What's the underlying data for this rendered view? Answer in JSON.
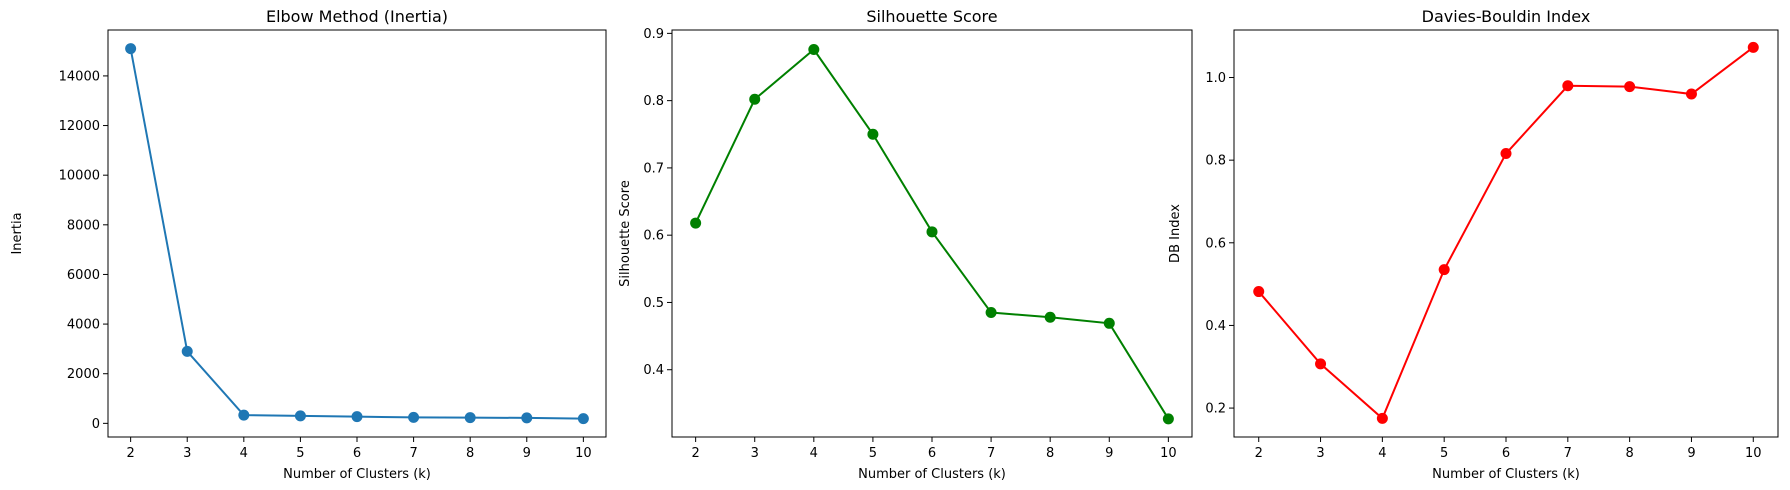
{
  "chart_data": [
    {
      "type": "line",
      "title": "Elbow Method (Inertia)",
      "xlabel": "Number of Clusters (k)",
      "ylabel": "Inertia",
      "x": [
        2,
        3,
        4,
        5,
        6,
        7,
        8,
        9,
        10
      ],
      "xlim": [
        1.6,
        10.4
      ],
      "ylim": [
        -550,
        15850
      ],
      "xticks": [
        "2",
        "3",
        "4",
        "5",
        "6",
        "7",
        "8",
        "9",
        "10"
      ],
      "yticks": [
        0,
        2000,
        4000,
        6000,
        8000,
        10000,
        12000,
        14000
      ],
      "ytick_labels": [
        "0",
        "2000",
        "4000",
        "6000",
        "8000",
        "10000",
        "12000",
        "14000"
      ],
      "grid": false,
      "series": [
        {
          "values": [
            15100,
            2900,
            330,
            300,
            270,
            240,
            230,
            220,
            190
          ],
          "color": "#1f77b4",
          "marker": "circle"
        }
      ]
    },
    {
      "type": "line",
      "title": "Silhouette Score",
      "xlabel": "Number of Clusters (k)",
      "ylabel": "Silhouette Score",
      "x": [
        2,
        3,
        4,
        5,
        6,
        7,
        8,
        9,
        10
      ],
      "xlim": [
        1.6,
        10.4
      ],
      "ylim": [
        0.3,
        0.905
      ],
      "xticks": [
        "2",
        "3",
        "4",
        "5",
        "6",
        "7",
        "8",
        "9",
        "10"
      ],
      "yticks": [
        0.4,
        0.5,
        0.6,
        0.7,
        0.8,
        0.9
      ],
      "ytick_labels": [
        "0.4",
        "0.5",
        "0.6",
        "0.7",
        "0.8",
        "0.9"
      ],
      "grid": false,
      "series": [
        {
          "values": [
            0.618,
            0.802,
            0.876,
            0.75,
            0.605,
            0.485,
            0.478,
            0.469,
            0.327
          ],
          "color": "#008000",
          "marker": "circle"
        }
      ]
    },
    {
      "type": "line",
      "title": "Davies-Bouldin Index",
      "xlabel": "Number of Clusters (k)",
      "ylabel": "DB Index",
      "x": [
        2,
        3,
        4,
        5,
        6,
        7,
        8,
        9,
        10
      ],
      "xlim": [
        1.6,
        10.4
      ],
      "ylim": [
        0.13,
        1.115
      ],
      "xticks": [
        "2",
        "3",
        "4",
        "5",
        "6",
        "7",
        "8",
        "9",
        "10"
      ],
      "yticks": [
        0.2,
        0.4,
        0.6,
        0.8,
        1.0
      ],
      "ytick_labels": [
        "0.2",
        "0.4",
        "0.6",
        "0.8",
        "1.0"
      ],
      "grid": false,
      "series": [
        {
          "values": [
            0.482,
            0.307,
            0.175,
            0.535,
            0.816,
            0.98,
            0.978,
            0.96,
            1.073
          ],
          "color": "#ff0000",
          "marker": "circle"
        }
      ]
    }
  ]
}
